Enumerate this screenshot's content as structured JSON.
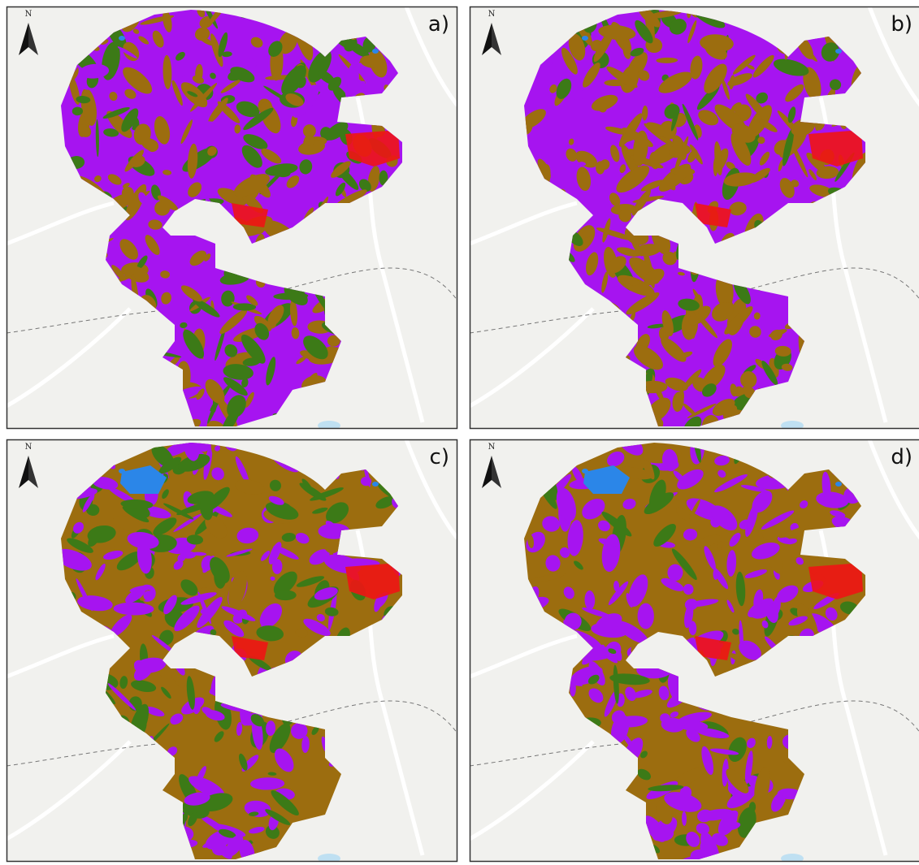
{
  "panels": [
    {
      "label": "a)",
      "north": "N"
    },
    {
      "label": "b)",
      "north": "N"
    },
    {
      "label": "c)",
      "north": "N"
    },
    {
      "label": "d)",
      "north": "N"
    }
  ]
}
